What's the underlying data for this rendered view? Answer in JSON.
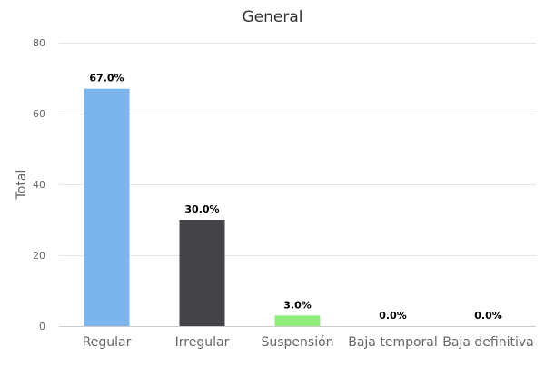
{
  "chart_data": {
    "type": "bar",
    "title": "General",
    "xlabel": "",
    "ylabel": "Total",
    "ylim": [
      0,
      80
    ],
    "yticks": [
      0,
      20,
      40,
      60,
      80
    ],
    "grid": true,
    "legend": "none",
    "categories": [
      "Regular",
      "Irregular",
      "Suspensión",
      "Baja temporal",
      "Baja definitiva"
    ],
    "values": [
      67,
      30,
      3,
      0,
      0
    ],
    "data_labels": [
      "67.0%",
      "30.0%",
      "3.0%",
      "0.0%",
      "0.0%"
    ],
    "colors": [
      "#7cb5ec",
      "#434348",
      "#90ed7d",
      "#f7a35c",
      "#8085e9"
    ]
  }
}
